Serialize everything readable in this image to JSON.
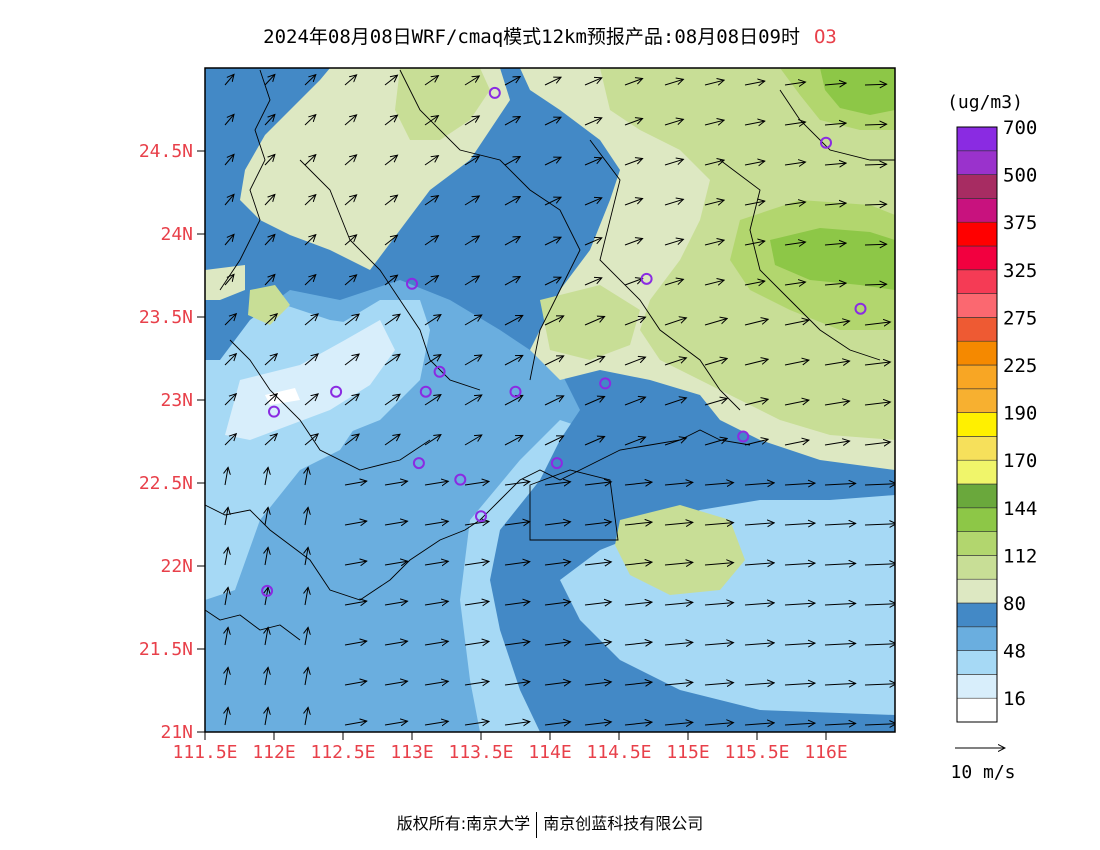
{
  "title": {
    "main": "2024年08月08日WRF/cmaq模式12km预报产品:08月08日09时",
    "species": "O3"
  },
  "map": {
    "lon_range": [
      111.5,
      116.5
    ],
    "lat_range": [
      21.0,
      25.0
    ],
    "lat_ticks": [
      {
        "value": 24.5,
        "label": "24.5N"
      },
      {
        "value": 24.0,
        "label": "24N"
      },
      {
        "value": 23.5,
        "label": "23.5N"
      },
      {
        "value": 23.0,
        "label": "23N"
      },
      {
        "value": 22.5,
        "label": "22.5N"
      },
      {
        "value": 22.0,
        "label": "22N"
      },
      {
        "value": 21.5,
        "label": "21.5N"
      },
      {
        "value": 21.0,
        "label": "21N"
      }
    ],
    "lon_ticks": [
      {
        "value": 111.5,
        "label": "111.5E"
      },
      {
        "value": 112.0,
        "label": "112E"
      },
      {
        "value": 112.5,
        "label": "112.5E"
      },
      {
        "value": 113.0,
        "label": "113E"
      },
      {
        "value": 113.5,
        "label": "113.5E"
      },
      {
        "value": 114.0,
        "label": "114E"
      },
      {
        "value": 114.5,
        "label": "114.5E"
      },
      {
        "value": 115.0,
        "label": "115E"
      },
      {
        "value": 115.5,
        "label": "115.5E"
      },
      {
        "value": 116.0,
        "label": "116E"
      }
    ],
    "stations": [
      [
        113.6,
        24.85
      ],
      [
        116.0,
        24.55
      ],
      [
        114.7,
        23.73
      ],
      [
        113.0,
        23.7
      ],
      [
        116.25,
        23.55
      ],
      [
        113.2,
        23.17
      ],
      [
        112.45,
        23.05
      ],
      [
        113.1,
        23.05
      ],
      [
        113.75,
        23.05
      ],
      [
        114.4,
        23.1
      ],
      [
        112.0,
        22.93
      ],
      [
        115.4,
        22.78
      ],
      [
        113.05,
        22.62
      ],
      [
        114.05,
        22.62
      ],
      [
        113.35,
        22.52
      ],
      [
        113.5,
        22.3
      ],
      [
        111.95,
        21.85
      ]
    ]
  },
  "colorbar": {
    "unit": "(ug/m3)",
    "colors": [
      "#ffffff",
      "#d8eefb",
      "#a6d9f5",
      "#6aaedf",
      "#4389c6",
      "#dde8c2",
      "#c8de96",
      "#b2d66e",
      "#8dc747",
      "#6aa83c",
      "#f0f56a",
      "#f6e05b",
      "#fff000",
      "#f7b030",
      "#f8a624",
      "#f58900",
      "#ee5a33",
      "#fb6870",
      "#f53b55",
      "#f2003f",
      "#ff0000",
      "#c8127e",
      "#a72c62",
      "#9a32cc",
      "#8a2be2"
    ],
    "labels": [
      {
        "index": 1,
        "text": "16"
      },
      {
        "index": 3,
        "text": "48"
      },
      {
        "index": 5,
        "text": "80"
      },
      {
        "index": 7,
        "text": "112"
      },
      {
        "index": 9,
        "text": "144"
      },
      {
        "index": 11,
        "text": "170"
      },
      {
        "index": 13,
        "text": "190"
      },
      {
        "index": 15,
        "text": "225"
      },
      {
        "index": 17,
        "text": "275"
      },
      {
        "index": 19,
        "text": "325"
      },
      {
        "index": 21,
        "text": "375"
      },
      {
        "index": 23,
        "text": "500"
      },
      {
        "index": 25,
        "text": "700"
      }
    ]
  },
  "wind_legend": {
    "label": "10 m/s"
  },
  "footer": {
    "left": "版权所有:南京大学",
    "right": "南京创蓝科技有限公司"
  }
}
